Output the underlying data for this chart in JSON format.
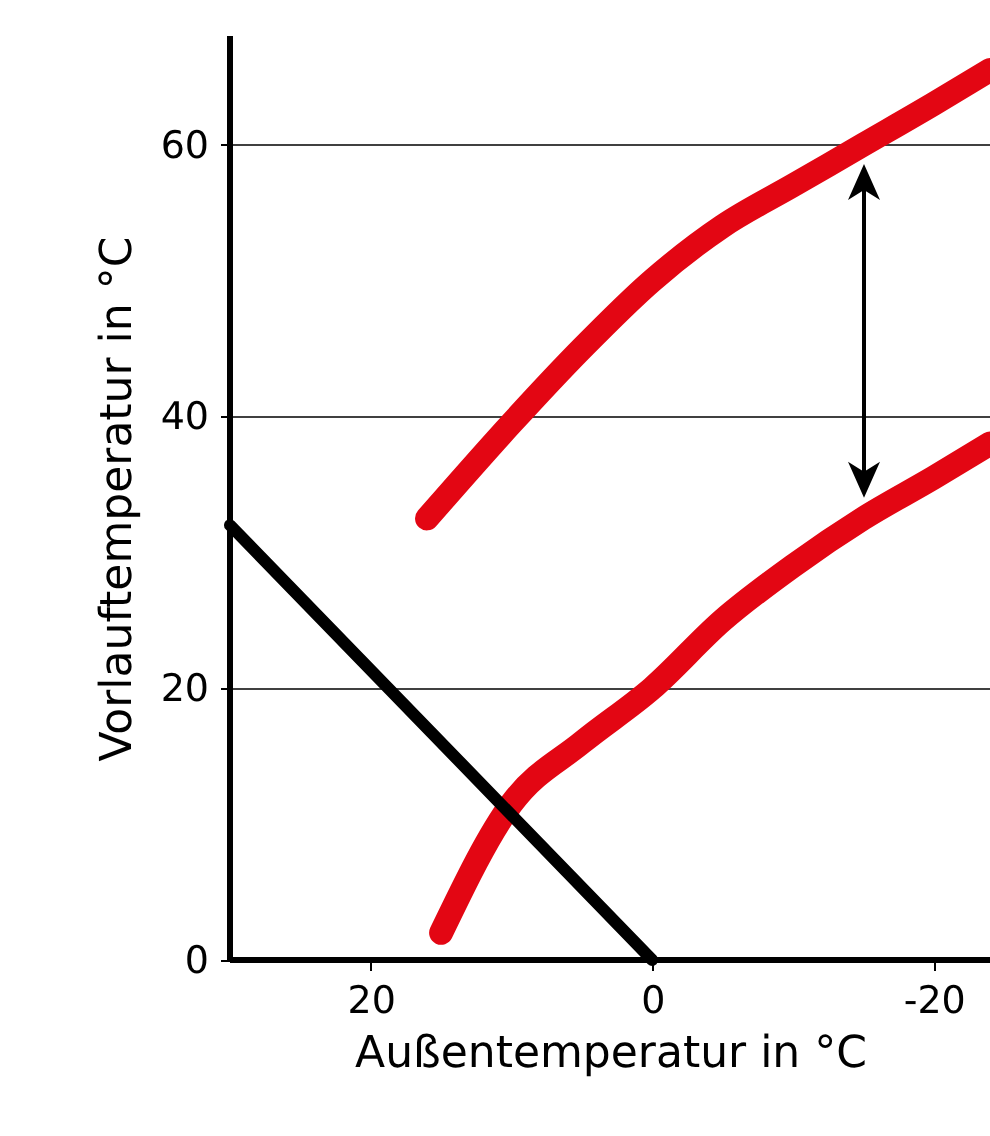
{
  "chart_data": {
    "type": "line",
    "xlabel": "Außentemperatur in °C",
    "ylabel": "Vorlauftemperatur in °C",
    "xlim": [
      30,
      -24
    ],
    "xticks": [
      20,
      0,
      -20
    ],
    "ylim": [
      0,
      68
    ],
    "yticks": [
      0,
      20,
      40,
      60
    ],
    "grid": "y",
    "series": [
      {
        "color": "#e30613",
        "x": [
          16,
          10,
          5,
          0,
          -5,
          -10,
          -15,
          -20,
          -24
        ],
        "values": [
          32.5,
          39.5,
          45,
          50,
          54,
          57,
          60,
          63,
          65.5
        ]
      },
      {
        "color": "#e30613",
        "x": [
          15,
          10,
          5,
          0,
          -5,
          -10,
          -15,
          -20,
          -24
        ],
        "values": [
          2,
          11.5,
          16,
          20,
          25,
          29,
          32.5,
          35.5,
          38
        ]
      },
      {
        "color": "#000000",
        "x": [
          30,
          0
        ],
        "values": [
          32,
          0
        ]
      }
    ]
  }
}
